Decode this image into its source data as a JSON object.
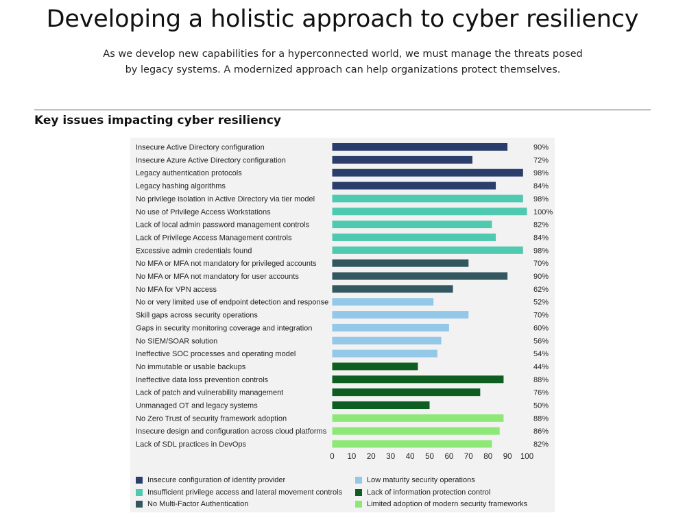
{
  "header": {
    "title": "Developing a holistic approach to cyber resiliency",
    "subtitle": "As we develop new capabilities for a hyperconnected world, we must manage the threats posed by legacy systems. A modernized approach can help organizations protect themselves."
  },
  "section": {
    "heading": "Key issues impacting cyber resiliency"
  },
  "chart_data": {
    "type": "bar",
    "orientation": "horizontal",
    "title": "Key issues impacting cyber resiliency",
    "xlabel": "",
    "ylabel": "",
    "xlim": [
      0,
      100
    ],
    "xticks": [
      0,
      10,
      20,
      30,
      40,
      50,
      60,
      70,
      80,
      90,
      100
    ],
    "value_suffix": "%",
    "categories": [
      "Insecure Active Directory configuration",
      "Insecure Azure Active Directory configuration",
      "Legacy authentication protocols",
      "Legacy hashing algorithms",
      "No privilege isolation in Active Directory via tier model",
      "No use of Privilege Access Workstations",
      "Lack of local admin password management controls",
      "Lack of Privilege Access Management controls",
      "Excessive admin credentials found",
      "No MFA or MFA not mandatory for privileged accounts",
      "No MFA or MFA not mandatory for user accounts",
      "No MFA for VPN access",
      "No or very limited use of endpoint detection and response",
      "Skill gaps across security operations",
      "Gaps in security monitoring coverage and integration",
      "No SIEM/SOAR solution",
      "Ineffective SOC processes and operating model",
      "No immutable or usable backups",
      "Ineffective data loss prevention controls",
      "Lack of patch and vulnerability management",
      "Unmanaged OT and legacy systems",
      "No Zero Trust of security framework adoption",
      "Insecure design and configuration across cloud platforms",
      "Lack of SDL practices in DevOps"
    ],
    "values": [
      90,
      72,
      98,
      84,
      98,
      100,
      82,
      84,
      98,
      70,
      90,
      62,
      52,
      70,
      60,
      56,
      54,
      44,
      88,
      76,
      50,
      88,
      86,
      82
    ],
    "groups": [
      0,
      0,
      0,
      0,
      1,
      1,
      1,
      1,
      1,
      2,
      2,
      2,
      3,
      3,
      3,
      3,
      3,
      4,
      4,
      4,
      4,
      5,
      5,
      5
    ],
    "legend": [
      {
        "name": "Insecure configuration of identity provider",
        "color": "#2b3e6b"
      },
      {
        "name": "Insufficient privilege access and lateral movement controls",
        "color": "#4fc9b0"
      },
      {
        "name": "No Multi-Factor Authentication",
        "color": "#33575f"
      },
      {
        "name": "Low maturity security operations",
        "color": "#93c8e8"
      },
      {
        "name": "Lack of information protection control",
        "color": "#0e5e22"
      },
      {
        "name": "Limited adoption of modern security frameworks",
        "color": "#8ee878"
      }
    ],
    "legend_position": "bottom",
    "grid": false
  }
}
